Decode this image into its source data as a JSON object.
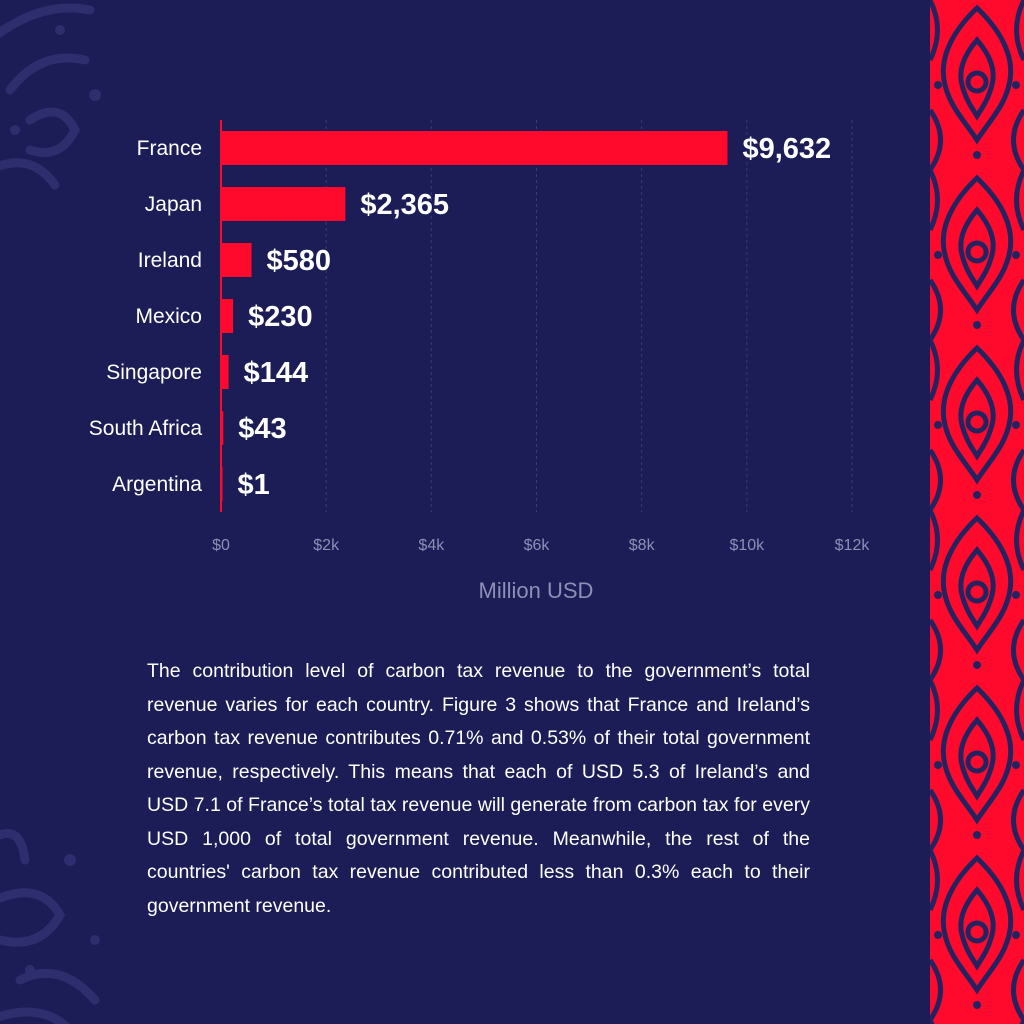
{
  "chart_data": {
    "type": "bar",
    "orientation": "horizontal",
    "categories": [
      "France",
      "Japan",
      "Ireland",
      "Mexico",
      "Singapore",
      "South Africa",
      "Argentina"
    ],
    "values": [
      9632,
      2365,
      580,
      230,
      144,
      43,
      1
    ],
    "value_labels": [
      "$9,632",
      "$2,365",
      "$580",
      "$230",
      "$144",
      "$43",
      "$1"
    ],
    "xlabel": "Million USD",
    "xlim": [
      0,
      12000
    ],
    "ticks": [
      0,
      2000,
      4000,
      6000,
      8000,
      10000,
      12000
    ],
    "tick_labels": [
      "$0",
      "$2k",
      "$4k",
      "$6k",
      "$8k",
      "$10k",
      "$12k"
    ],
    "grid": "vertical dashed",
    "bar_color": "#ff0a2d"
  },
  "description": "The contribution level of carbon tax revenue to the government’s total revenue varies for each country. Figure 3 shows that France and Ireland’s carbon tax revenue contributes 0.71% and 0.53% of their total government revenue, respectively. This means that each of USD 5.3 of Ireland’s and USD 7.1 of France’s total tax revenue will generate from carbon tax for every USD 1,000 of total government revenue. Meanwhile, the rest of the countries' carbon tax revenue contributed less than 0.3% each to their government revenue.",
  "colors": {
    "background": "#1c1c57",
    "accent": "#ff0a2d",
    "ornament": "#2e2e6e"
  }
}
